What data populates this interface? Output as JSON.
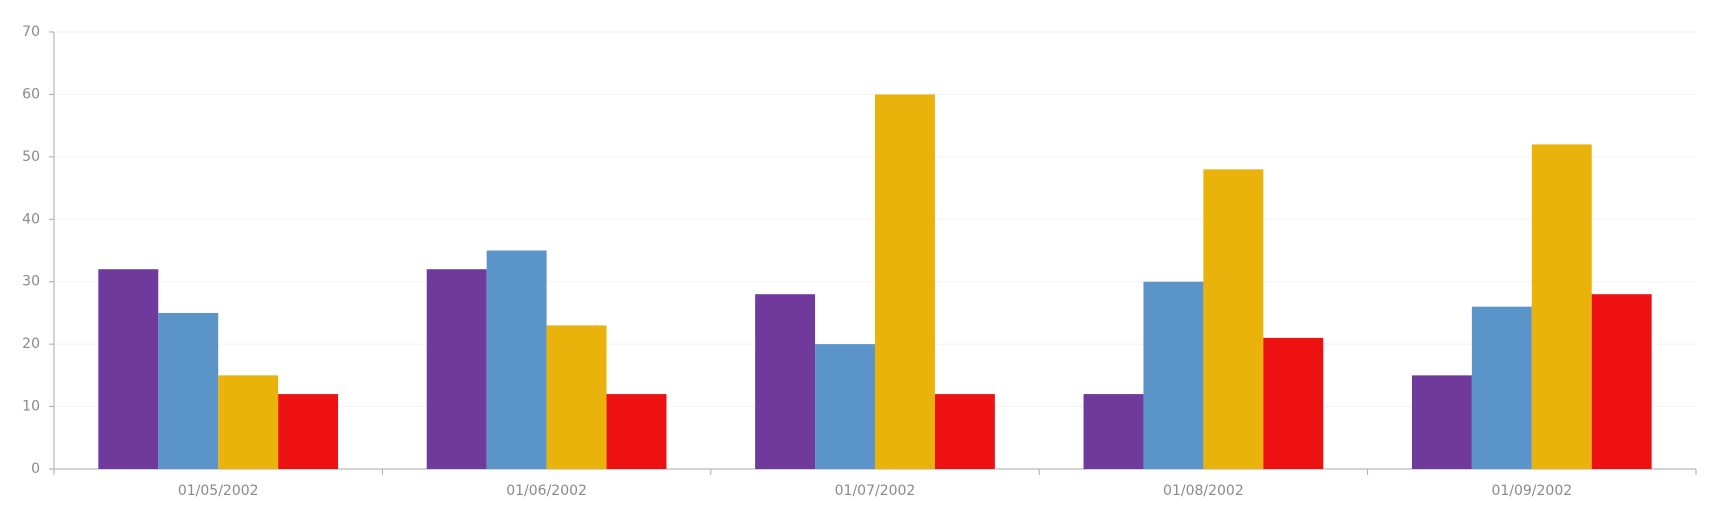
{
  "chart_data": {
    "type": "bar",
    "categories": [
      "01/05/2002",
      "01/06/2002",
      "01/07/2002",
      "01/08/2002",
      "01/09/2002"
    ],
    "series": [
      {
        "color": "#6f3a9c",
        "values": [
          32,
          32,
          28,
          12,
          15
        ]
      },
      {
        "color": "#5b94c9",
        "values": [
          25,
          35,
          20,
          30,
          26
        ]
      },
      {
        "color": "#e9b30c",
        "values": [
          15,
          23,
          60,
          48,
          52
        ]
      },
      {
        "color": "#ee1111",
        "values": [
          12,
          12,
          12,
          21,
          28
        ]
      }
    ],
    "ylim": [
      0,
      70
    ],
    "yticks": [
      0,
      10,
      20,
      30,
      40,
      50,
      60,
      70
    ],
    "grid": true
  }
}
